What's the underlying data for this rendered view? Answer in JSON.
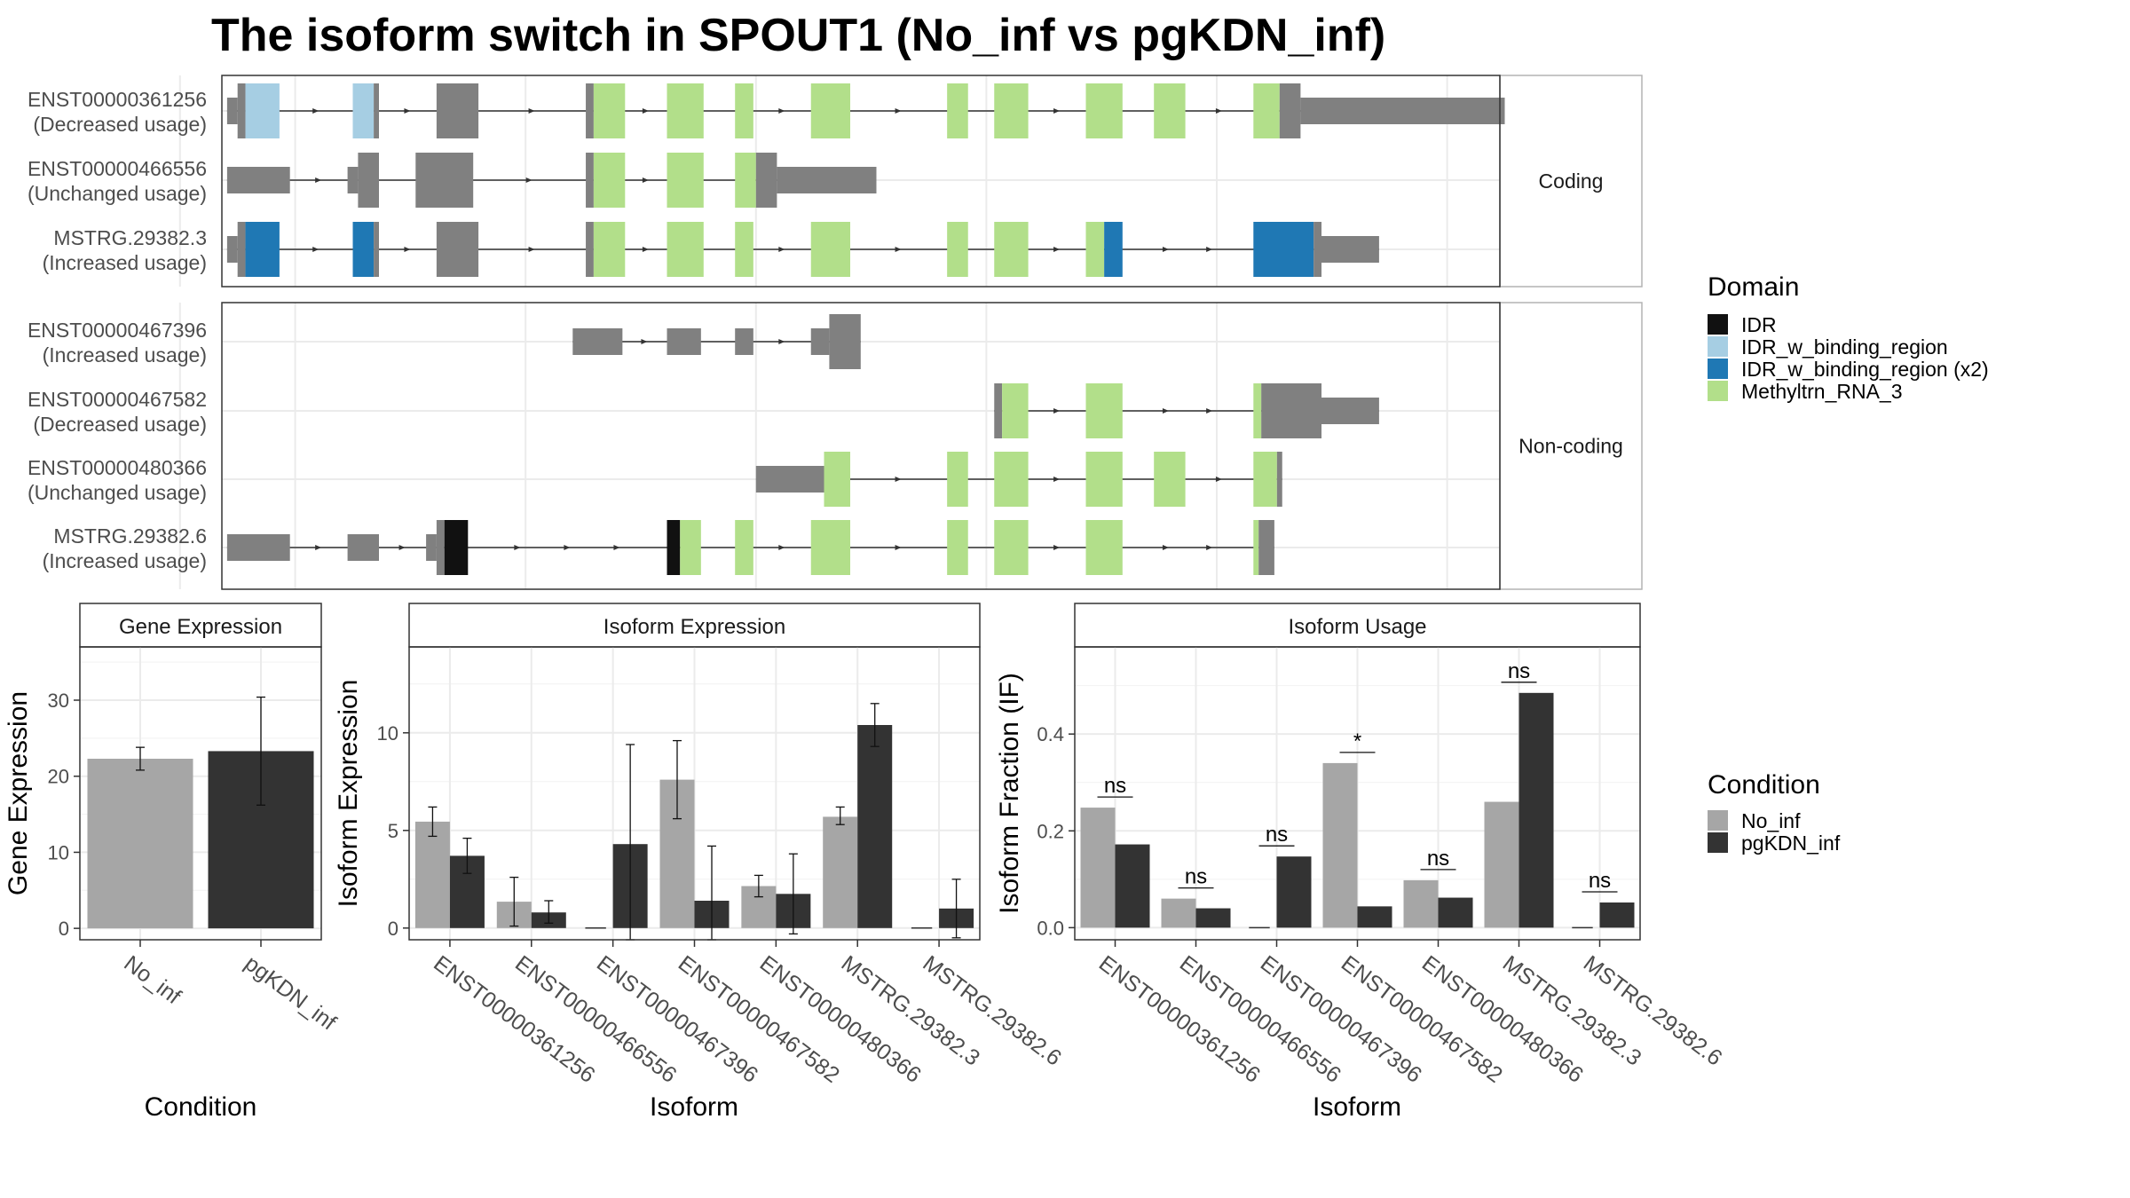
{
  "title": "The isoform switch in SPOUT1 (No_inf vs pgKDN_inf)",
  "colors": {
    "IDR": "#111111",
    "IDR_w_binding_region": "#a6cee3",
    "IDR_w_binding_region (x2)": "#1f78b4",
    "Methyltrn_RNA_3": "#b2df8a",
    "exon": "#808080",
    "No_inf": "#a6a6a6",
    "pgKDN_inf": "#333333"
  },
  "domain_legend": {
    "title": "Domain",
    "items": [
      "IDR",
      "IDR_w_binding_region",
      "IDR_w_binding_region (x2)",
      "Methyltrn_RNA_3"
    ]
  },
  "condition_legend": {
    "title": "Condition",
    "items": [
      "No_inf",
      "pgKDN_inf"
    ]
  },
  "transcript_panels": [
    {
      "label": "Coding",
      "transcripts": [
        {
          "id": "ENST00000361256",
          "usage": "(Decreased usage)",
          "segments": [
            {
              "s": 1,
              "e": 3,
              "k": "utr"
            },
            {
              "s": 3,
              "e": 4.5,
              "k": "cds"
            },
            {
              "s": 4.5,
              "e": 11,
              "k": "cds",
              "d": "IDR_w_binding_region"
            },
            {
              "s": 25,
              "e": 29,
              "k": "cds",
              "d": "IDR_w_binding_region"
            },
            {
              "s": 29,
              "e": 30,
              "k": "cds"
            },
            {
              "s": 41,
              "e": 49,
              "k": "cds"
            },
            {
              "s": 69.5,
              "e": 71,
              "k": "cds"
            },
            {
              "s": 71,
              "e": 77,
              "k": "cds",
              "d": "Methyltrn_RNA_3"
            },
            {
              "s": 85,
              "e": 92,
              "k": "cds",
              "d": "Methyltrn_RNA_3"
            },
            {
              "s": 98,
              "e": 101.5,
              "k": "cds",
              "d": "Methyltrn_RNA_3"
            },
            {
              "s": 112.5,
              "e": 120,
              "k": "cds",
              "d": "Methyltrn_RNA_3"
            },
            {
              "s": 138.5,
              "e": 142.5,
              "k": "cds",
              "d": "Methyltrn_RNA_3"
            },
            {
              "s": 147.5,
              "e": 154,
              "k": "cds",
              "d": "Methyltrn_RNA_3"
            },
            {
              "s": 165,
              "e": 172,
              "k": "cds",
              "d": "Methyltrn_RNA_3"
            },
            {
              "s": 178,
              "e": 184,
              "k": "cds",
              "d": "Methyltrn_RNA_3"
            },
            {
              "s": 197,
              "e": 202,
              "k": "cds",
              "d": "Methyltrn_RNA_3"
            },
            {
              "s": 202,
              "e": 206,
              "k": "cds"
            },
            {
              "s": 206,
              "e": 245,
              "k": "utr"
            }
          ]
        },
        {
          "id": "ENST00000466556",
          "usage": "(Unchanged usage)",
          "segments": [
            {
              "s": 1,
              "e": 13,
              "k": "utr"
            },
            {
              "s": 24,
              "e": 26,
              "k": "utr"
            },
            {
              "s": 26,
              "e": 30,
              "k": "cds"
            },
            {
              "s": 37,
              "e": 48,
              "k": "cds"
            },
            {
              "s": 69.5,
              "e": 71,
              "k": "cds"
            },
            {
              "s": 71,
              "e": 77,
              "k": "cds",
              "d": "Methyltrn_RNA_3"
            },
            {
              "s": 85,
              "e": 92,
              "k": "cds",
              "d": "Methyltrn_RNA_3"
            },
            {
              "s": 98,
              "e": 102,
              "k": "cds",
              "d": "Methyltrn_RNA_3"
            },
            {
              "s": 102,
              "e": 106,
              "k": "cds"
            },
            {
              "s": 106,
              "e": 125,
              "k": "utr"
            }
          ]
        },
        {
          "id": "MSTRG.29382.3",
          "usage": "(Increased usage)",
          "segments": [
            {
              "s": 1,
              "e": 3,
              "k": "utr"
            },
            {
              "s": 3,
              "e": 4.5,
              "k": "cds"
            },
            {
              "s": 4.5,
              "e": 11,
              "k": "cds",
              "d": "IDR_w_binding_region (x2)"
            },
            {
              "s": 25,
              "e": 29,
              "k": "cds",
              "d": "IDR_w_binding_region (x2)"
            },
            {
              "s": 29,
              "e": 30,
              "k": "cds"
            },
            {
              "s": 41,
              "e": 49,
              "k": "cds"
            },
            {
              "s": 69.5,
              "e": 71,
              "k": "cds"
            },
            {
              "s": 71,
              "e": 77,
              "k": "cds",
              "d": "Methyltrn_RNA_3"
            },
            {
              "s": 85,
              "e": 92,
              "k": "cds",
              "d": "Methyltrn_RNA_3"
            },
            {
              "s": 98,
              "e": 101.5,
              "k": "cds",
              "d": "Methyltrn_RNA_3"
            },
            {
              "s": 112.5,
              "e": 120,
              "k": "cds",
              "d": "Methyltrn_RNA_3"
            },
            {
              "s": 138.5,
              "e": 142.5,
              "k": "cds",
              "d": "Methyltrn_RNA_3"
            },
            {
              "s": 147.5,
              "e": 154,
              "k": "cds",
              "d": "Methyltrn_RNA_3"
            },
            {
              "s": 165,
              "e": 168.5,
              "k": "cds",
              "d": "Methyltrn_RNA_3"
            },
            {
              "s": 168.5,
              "e": 172,
              "k": "cds",
              "d": "IDR_w_binding_region (x2)"
            },
            {
              "s": 197,
              "e": 208.5,
              "k": "cds",
              "d": "IDR_w_binding_region (x2)"
            },
            {
              "s": 208.5,
              "e": 210,
              "k": "cds"
            },
            {
              "s": 210,
              "e": 221,
              "k": "utr"
            }
          ]
        }
      ]
    },
    {
      "label": "Non-coding",
      "transcripts": [
        {
          "id": "ENST00000467396",
          "usage": "(Increased usage)",
          "segments": [
            {
              "s": 67,
              "e": 76.5,
              "k": "utr"
            },
            {
              "s": 85,
              "e": 91.5,
              "k": "utr"
            },
            {
              "s": 98,
              "e": 101.5,
              "k": "utr"
            },
            {
              "s": 112.5,
              "e": 116,
              "k": "utr"
            },
            {
              "s": 116,
              "e": 122,
              "k": "cds"
            }
          ]
        },
        {
          "id": "ENST00000467582",
          "usage": "(Decreased usage)",
          "segments": [
            {
              "s": 147.5,
              "e": 149,
              "k": "cds"
            },
            {
              "s": 149,
              "e": 154,
              "k": "cds",
              "d": "Methyltrn_RNA_3"
            },
            {
              "s": 165,
              "e": 172,
              "k": "cds",
              "d": "Methyltrn_RNA_3"
            },
            {
              "s": 197,
              "e": 198.5,
              "k": "cds",
              "d": "Methyltrn_RNA_3"
            },
            {
              "s": 198.5,
              "e": 210,
              "k": "cds"
            },
            {
              "s": 210,
              "e": 221,
              "k": "utr"
            }
          ]
        },
        {
          "id": "ENST00000480366",
          "usage": "(Unchanged usage)",
          "segments": [
            {
              "s": 102,
              "e": 115,
              "k": "utr"
            },
            {
              "s": 115,
              "e": 120,
              "k": "cds",
              "d": "Methyltrn_RNA_3"
            },
            {
              "s": 138.5,
              "e": 142.5,
              "k": "cds",
              "d": "Methyltrn_RNA_3"
            },
            {
              "s": 147.5,
              "e": 154,
              "k": "cds",
              "d": "Methyltrn_RNA_3"
            },
            {
              "s": 165,
              "e": 172,
              "k": "cds",
              "d": "Methyltrn_RNA_3"
            },
            {
              "s": 178,
              "e": 184,
              "k": "cds",
              "d": "Methyltrn_RNA_3"
            },
            {
              "s": 197,
              "e": 201.5,
              "k": "cds",
              "d": "Methyltrn_RNA_3"
            },
            {
              "s": 201.5,
              "e": 202.5,
              "k": "cds"
            }
          ]
        },
        {
          "id": "MSTRG.29382.6",
          "usage": "(Increased usage)",
          "segments": [
            {
              "s": 1,
              "e": 13,
              "k": "utr"
            },
            {
              "s": 24,
              "e": 30,
              "k": "utr"
            },
            {
              "s": 39,
              "e": 41,
              "k": "utr"
            },
            {
              "s": 41,
              "e": 42.5,
              "k": "cds"
            },
            {
              "s": 42.5,
              "e": 47,
              "k": "cds",
              "d": "IDR"
            },
            {
              "s": 85,
              "e": 87.5,
              "k": "cds",
              "d": "IDR"
            },
            {
              "s": 87.5,
              "e": 91.5,
              "k": "cds",
              "d": "Methyltrn_RNA_3"
            },
            {
              "s": 98,
              "e": 101.5,
              "k": "cds",
              "d": "Methyltrn_RNA_3"
            },
            {
              "s": 112.5,
              "e": 120,
              "k": "cds",
              "d": "Methyltrn_RNA_3"
            },
            {
              "s": 138.5,
              "e": 142.5,
              "k": "cds",
              "d": "Methyltrn_RNA_3"
            },
            {
              "s": 147.5,
              "e": 154,
              "k": "cds",
              "d": "Methyltrn_RNA_3"
            },
            {
              "s": 165,
              "e": 172,
              "k": "cds",
              "d": "Methyltrn_RNA_3"
            },
            {
              "s": 197,
              "e": 198,
              "k": "cds",
              "d": "Methyltrn_RNA_3"
            },
            {
              "s": 198,
              "e": 201,
              "k": "cds"
            }
          ]
        }
      ]
    }
  ],
  "chart_data": [
    {
      "type": "bar",
      "title": "Gene Expression",
      "xlabel": "Condition",
      "ylabel": "Gene Expression",
      "ylim": [
        -1.5,
        37
      ],
      "yticks": [
        0,
        10,
        20,
        30
      ],
      "categories": [
        "No_inf",
        "pgKDN_inf"
      ],
      "values": [
        22.3,
        23.3
      ],
      "error_low": [
        20.8,
        16.2
      ],
      "error_high": [
        23.8,
        30.4
      ]
    },
    {
      "type": "bar",
      "title": "Isoform Expression",
      "xlabel": "Isoform",
      "ylabel": "Isoform Expression",
      "ylim": [
        -0.6,
        14.4
      ],
      "yticks": [
        0,
        5,
        10
      ],
      "categories": [
        "ENST00000361256",
        "ENST00000466556",
        "ENST00000467396",
        "ENST00000467582",
        "ENST00000480366",
        "MSTRG.29382.3",
        "MSTRG.29382.6"
      ],
      "series": [
        {
          "name": "No_inf",
          "values": [
            5.45,
            1.35,
            0,
            7.6,
            2.15,
            5.7,
            0
          ],
          "error_low": [
            4.7,
            0.1,
            0,
            5.6,
            1.6,
            5.3,
            0
          ],
          "error_high": [
            6.2,
            2.6,
            0,
            9.6,
            2.7,
            6.2,
            0
          ]
        },
        {
          "name": "pgKDN_inf",
          "values": [
            3.7,
            0.8,
            4.3,
            1.4,
            1.75,
            10.4,
            1.0
          ],
          "error_low": [
            2.8,
            0.25,
            -0.8,
            -1.4,
            -0.3,
            9.3,
            -0.5
          ],
          "error_high": [
            4.6,
            1.4,
            9.4,
            4.2,
            3.8,
            11.5,
            2.5
          ]
        }
      ]
    },
    {
      "type": "bar",
      "title": "Isoform Usage",
      "xlabel": "Isoform",
      "ylabel": "Isoform Fraction (IF)",
      "ylim": [
        -0.025,
        0.58
      ],
      "yticks": [
        0.0,
        0.2,
        0.4
      ],
      "tick_labels": [
        "0.0",
        "0.2",
        "0.4"
      ],
      "categories": [
        "ENST00000361256",
        "ENST00000466556",
        "ENST00000467396",
        "ENST00000467582",
        "ENST00000480366",
        "MSTRG.29382.3",
        "MSTRG.29382.6"
      ],
      "series": [
        {
          "name": "No_inf",
          "values": [
            0.248,
            0.06,
            0,
            0.34,
            0.098,
            0.26,
            0
          ]
        },
        {
          "name": "pgKDN_inf",
          "values": [
            0.172,
            0.04,
            0.147,
            0.044,
            0.062,
            0.485,
            0.052
          ]
        }
      ],
      "significance": [
        "ns",
        "ns",
        "ns",
        "*",
        "ns",
        "ns",
        "ns"
      ]
    }
  ]
}
